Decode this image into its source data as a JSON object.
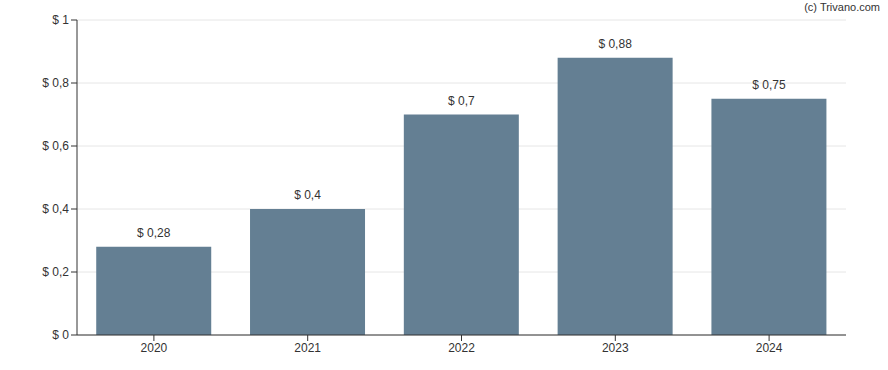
{
  "chart_data": {
    "type": "bar",
    "annotation": "(c) Trivano.com",
    "categories": [
      "2020",
      "2021",
      "2022",
      "2023",
      "2024"
    ],
    "values": [
      0.28,
      0.4,
      0.7,
      0.88,
      0.75
    ],
    "value_labels": [
      "$ 0,28",
      "$ 0,4",
      "$ 0,7",
      "$ 0,88",
      "$ 0,75"
    ],
    "data_labels": true,
    "color": "#647f93",
    "ylim": [
      0,
      1
    ],
    "yticks": [
      {
        "value": 0,
        "label": "$ 0"
      },
      {
        "value": 0.2,
        "label": "$ 0,2"
      },
      {
        "value": 0.4,
        "label": "$ 0,4"
      },
      {
        "value": 0.6,
        "label": "$ 0,6"
      },
      {
        "value": 0.8,
        "label": "$ 0,8"
      },
      {
        "value": 1,
        "label": "$ 1"
      }
    ],
    "grid": true
  }
}
